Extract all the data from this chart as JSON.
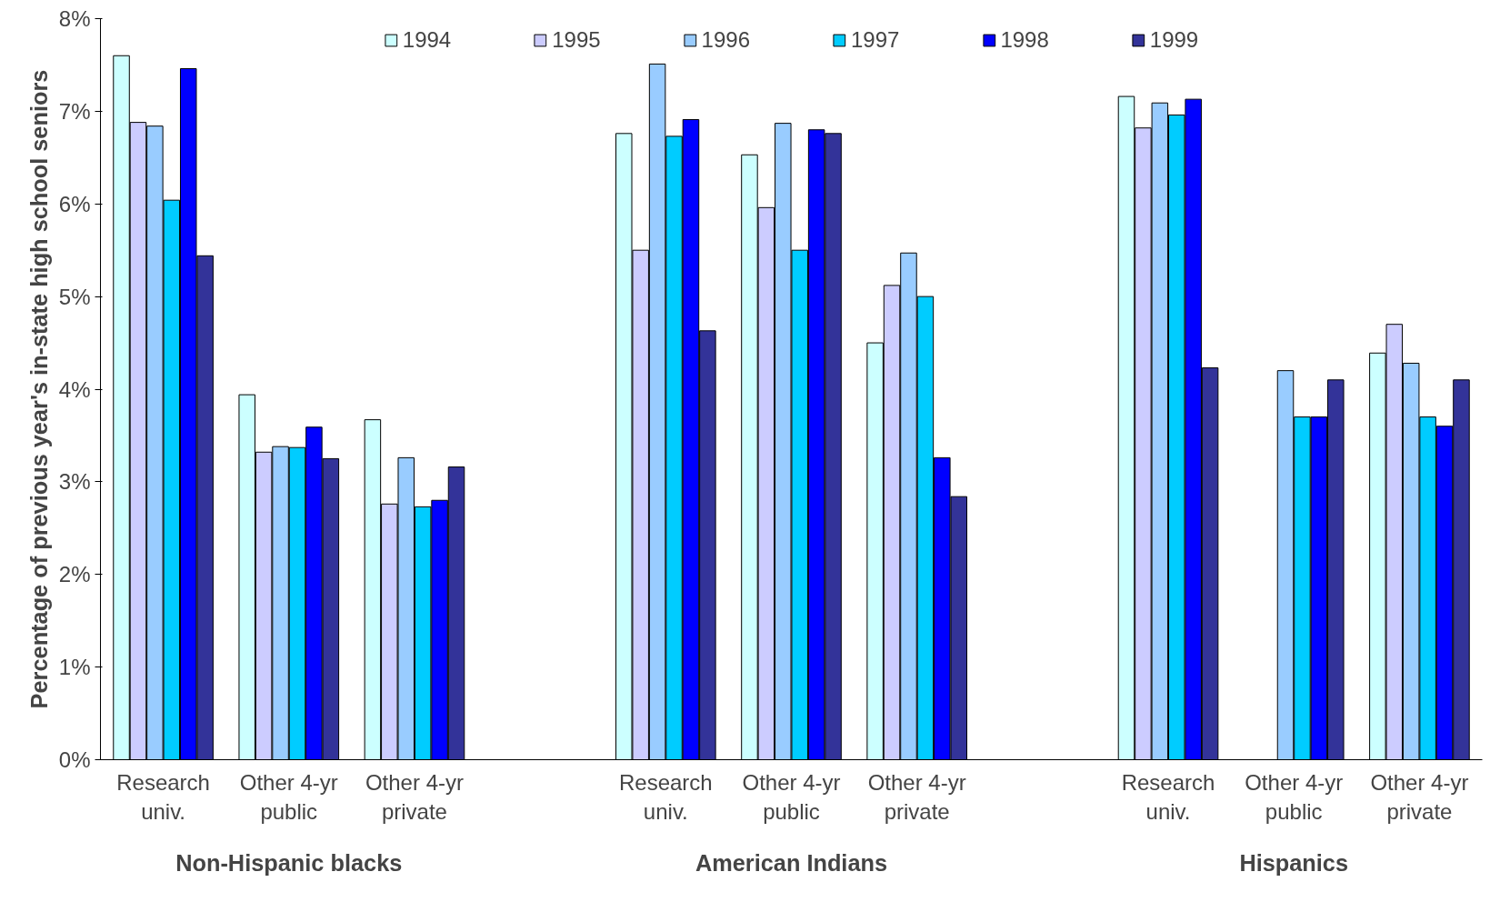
{
  "chart_data": {
    "type": "bar",
    "ylabel": "Percentage of previous year's in-state high school seniors",
    "categories": [
      "Research univ.",
      "Other 4-yr public",
      "Other 4-yr private",
      null,
      "Research univ.",
      "Other 4-yr public",
      "Other 4-yr private",
      null,
      "Research univ.",
      "Other 4-yr public",
      "Other 4-yr private"
    ],
    "series": [
      {
        "name": "1994",
        "color": "#ccffff",
        "values": [
          7.6,
          3.94,
          3.67,
          null,
          6.76,
          6.53,
          4.5,
          null,
          7.16,
          null,
          4.39
        ]
      },
      {
        "name": "1995",
        "color": "#ccccff",
        "values": [
          6.88,
          3.32,
          2.76,
          null,
          5.5,
          5.96,
          5.12,
          null,
          6.82,
          null,
          4.7
        ]
      },
      {
        "name": "1996",
        "color": "#99ccff",
        "values": [
          6.84,
          3.38,
          3.26,
          null,
          7.51,
          6.87,
          5.47,
          null,
          7.09,
          4.2,
          4.28
        ]
      },
      {
        "name": "1997",
        "color": "#00ccff",
        "values": [
          6.04,
          3.37,
          2.73,
          null,
          6.73,
          5.5,
          5.0,
          null,
          6.96,
          3.7,
          3.7
        ]
      },
      {
        "name": "1998",
        "color": "#0000ff",
        "values": [
          7.46,
          3.59,
          2.8,
          null,
          6.91,
          6.8,
          3.26,
          null,
          7.13,
          3.7,
          3.6
        ]
      },
      {
        "name": "1999",
        "color": "#333399",
        "values": [
          5.44,
          3.25,
          3.16,
          null,
          4.63,
          6.76,
          2.84,
          null,
          4.23,
          4.1,
          4.1
        ]
      }
    ],
    "ylim": [
      0,
      8
    ],
    "yticks": [
      {
        "value": 0,
        "label": "0%"
      },
      {
        "value": 1,
        "label": "1%"
      },
      {
        "value": 2,
        "label": "2%"
      },
      {
        "value": 3,
        "label": "3%"
      },
      {
        "value": 4,
        "label": "4%"
      },
      {
        "value": 5,
        "label": "5%"
      },
      {
        "value": 6,
        "label": "6%"
      },
      {
        "value": 7,
        "label": "7%"
      },
      {
        "value": 8,
        "label": "8%"
      }
    ],
    "annotations": [
      "Non-Hispanic blacks",
      "American Indians",
      "Hispanics"
    ],
    "legend": "top",
    "grid": false
  }
}
